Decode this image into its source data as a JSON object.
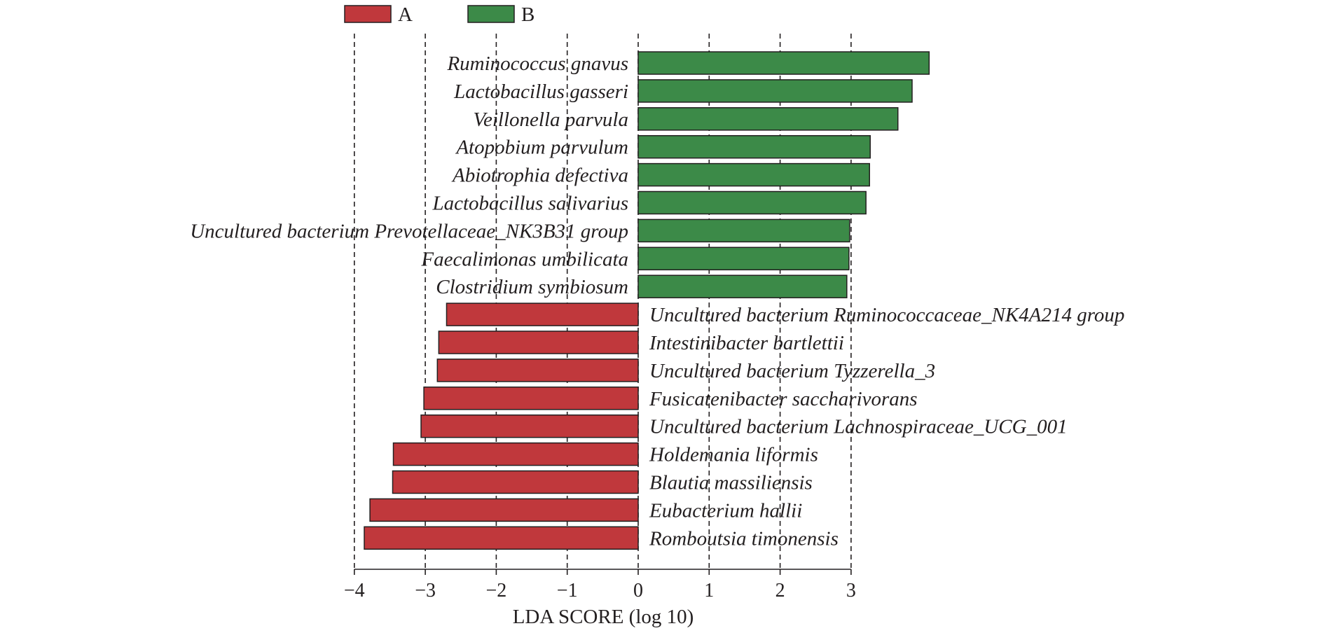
{
  "chart_data": {
    "type": "bar",
    "orientation": "horizontal",
    "xlabel": "LDA SCORE (log 10)",
    "xlim": [
      -4,
      4
    ],
    "xticks": [
      -4,
      -3,
      -2,
      -1,
      0,
      1,
      2,
      3
    ],
    "xtick_labels": [
      "−4",
      "−3",
      "−2",
      "−1",
      "0",
      "1",
      "2",
      "3"
    ],
    "grid": "vertical dashed",
    "legend_position": "top-left",
    "series": [
      {
        "name": "A",
        "color": "#c0383c"
      },
      {
        "name": "B",
        "color": "#3c8a48"
      }
    ],
    "categories": [
      "Ruminococcus gnavus",
      "Lactobacillus gasseri",
      "Veillonella parvula",
      "Atopobium parvulum",
      "Abiotrophia defectiva",
      "Lactobacillus salivarius",
      "Uncultured bacterium Prevotellaceae_NK3B31 group",
      "Faecalimonas umbilicata",
      "Clostridium symbiosum",
      "Uncultured bacterium Ruminococcaceae_NK4A214 group",
      "Intestinibacter bartlettii",
      "Uncultured bacterium Tyzzerella_3",
      "Fusicatenibacter saccharivorans",
      "Uncultured bacterium Lachnospiraceae_UCG_001",
      "Holdemania liformis",
      "Blautia massiliensis",
      "Eubacterium hallii",
      "Romboutsia timonensis"
    ],
    "values": [
      4.1,
      3.86,
      3.66,
      3.27,
      3.26,
      3.21,
      2.98,
      2.97,
      2.94,
      -2.7,
      -2.81,
      -2.83,
      -3.02,
      -3.06,
      -3.45,
      -3.46,
      -3.78,
      -3.86
    ],
    "groups": [
      "B",
      "B",
      "B",
      "B",
      "B",
      "B",
      "B",
      "B",
      "B",
      "A",
      "A",
      "A",
      "A",
      "A",
      "A",
      "A",
      "A",
      "A"
    ]
  }
}
